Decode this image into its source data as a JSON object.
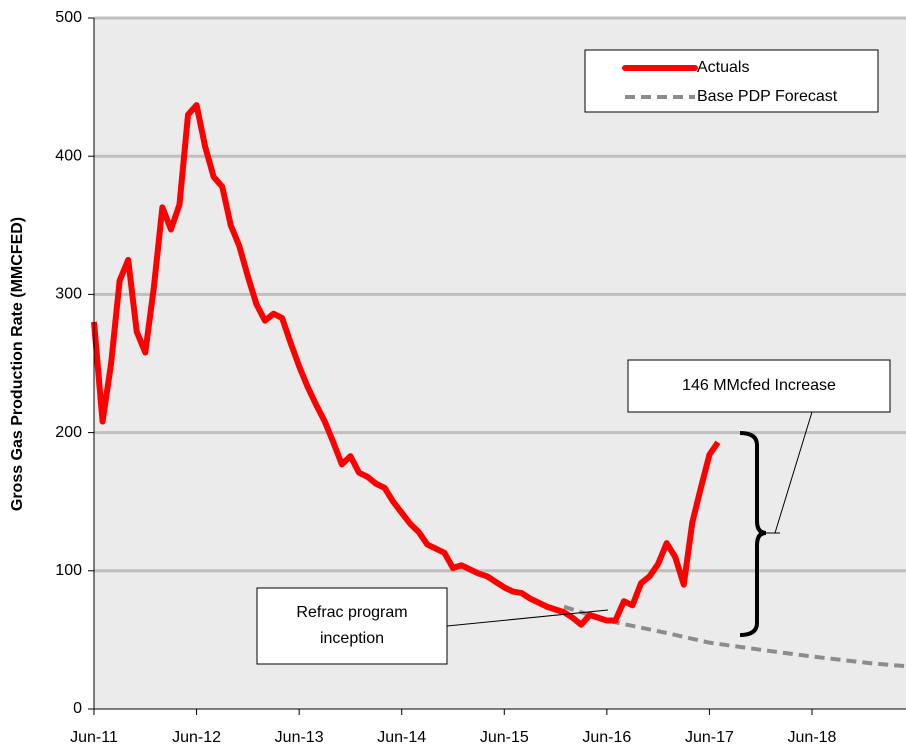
{
  "chart_data": {
    "type": "line",
    "y_label": "Gross Gas Production Rate (MMCFED)",
    "xlim": [
      "Jun-11",
      "May-19"
    ],
    "xticks": [
      "Jun-11",
      "Jun-12",
      "Jun-13",
      "Jun-14",
      "Jun-15",
      "Jun-16",
      "Jun-17",
      "Jun-18"
    ],
    "ylim": [
      0,
      500
    ],
    "yticks": [
      0,
      100,
      200,
      300,
      400,
      500
    ],
    "grid": true,
    "legend": "top-right",
    "series": [
      {
        "name": "Actuals",
        "color": "#ff0000",
        "style": "solid",
        "x": [
          "Jun-11",
          "Jul-11",
          "Aug-11",
          "Sep-11",
          "Oct-11",
          "Nov-11",
          "Dec-11",
          "Jan-12",
          "Feb-12",
          "Mar-12",
          "Apr-12",
          "May-12",
          "Jun-12",
          "Jul-12",
          "Aug-12",
          "Sep-12",
          "Oct-12",
          "Nov-12",
          "Dec-12",
          "Jan-13",
          "Feb-13",
          "Mar-13",
          "Apr-13",
          "May-13",
          "Jun-13",
          "Jul-13",
          "Aug-13",
          "Sep-13",
          "Oct-13",
          "Nov-13",
          "Dec-13",
          "Jan-14",
          "Feb-14",
          "Mar-14",
          "Apr-14",
          "May-14",
          "Jun-14",
          "Jul-14",
          "Aug-14",
          "Sep-14",
          "Oct-14",
          "Nov-14",
          "Dec-14",
          "Jan-15",
          "Feb-15",
          "Mar-15",
          "Apr-15",
          "May-15",
          "Jun-15",
          "Jul-15",
          "Aug-15",
          "Sep-15",
          "Oct-15",
          "Nov-15",
          "Dec-15",
          "Jan-16",
          "Feb-16",
          "Mar-16",
          "Apr-16",
          "May-16",
          "Jun-16",
          "Jul-16",
          "Aug-16",
          "Sep-16",
          "Oct-16",
          "Nov-16",
          "Dec-16",
          "Jan-17",
          "Feb-17",
          "Mar-17",
          "Apr-17",
          "May-17",
          "Jun-17",
          "Jul-17"
        ],
        "values": [
          280,
          208,
          250,
          310,
          325,
          273,
          258,
          305,
          363,
          347,
          365,
          430,
          437,
          407,
          385,
          378,
          350,
          335,
          313,
          293,
          281,
          286,
          283,
          265,
          248,
          233,
          220,
          208,
          193,
          177,
          183,
          171,
          168,
          163,
          160,
          150,
          142,
          134,
          128,
          119,
          116,
          113,
          102,
          104,
          101,
          98,
          96,
          92,
          88,
          85,
          84,
          80,
          77,
          74,
          72,
          70,
          66,
          61,
          68,
          66,
          64,
          64,
          78,
          75,
          91,
          96,
          105,
          120,
          110,
          90,
          135,
          160,
          184,
          193
        ]
      },
      {
        "name": "Base PDP Forecast",
        "color": "#8c8c8c",
        "style": "dashed",
        "x": [
          "Jan-16",
          "Jun-16",
          "Jan-17",
          "Jun-17",
          "Jan-18",
          "Jun-18",
          "Jan-19",
          "May-19"
        ],
        "values": [
          74,
          64,
          55,
          48,
          42,
          38,
          33,
          31
        ]
      }
    ],
    "annotations": {
      "increase": "146 MMcfed Increase",
      "refrac": [
        "Refrac program",
        "inception"
      ]
    }
  }
}
